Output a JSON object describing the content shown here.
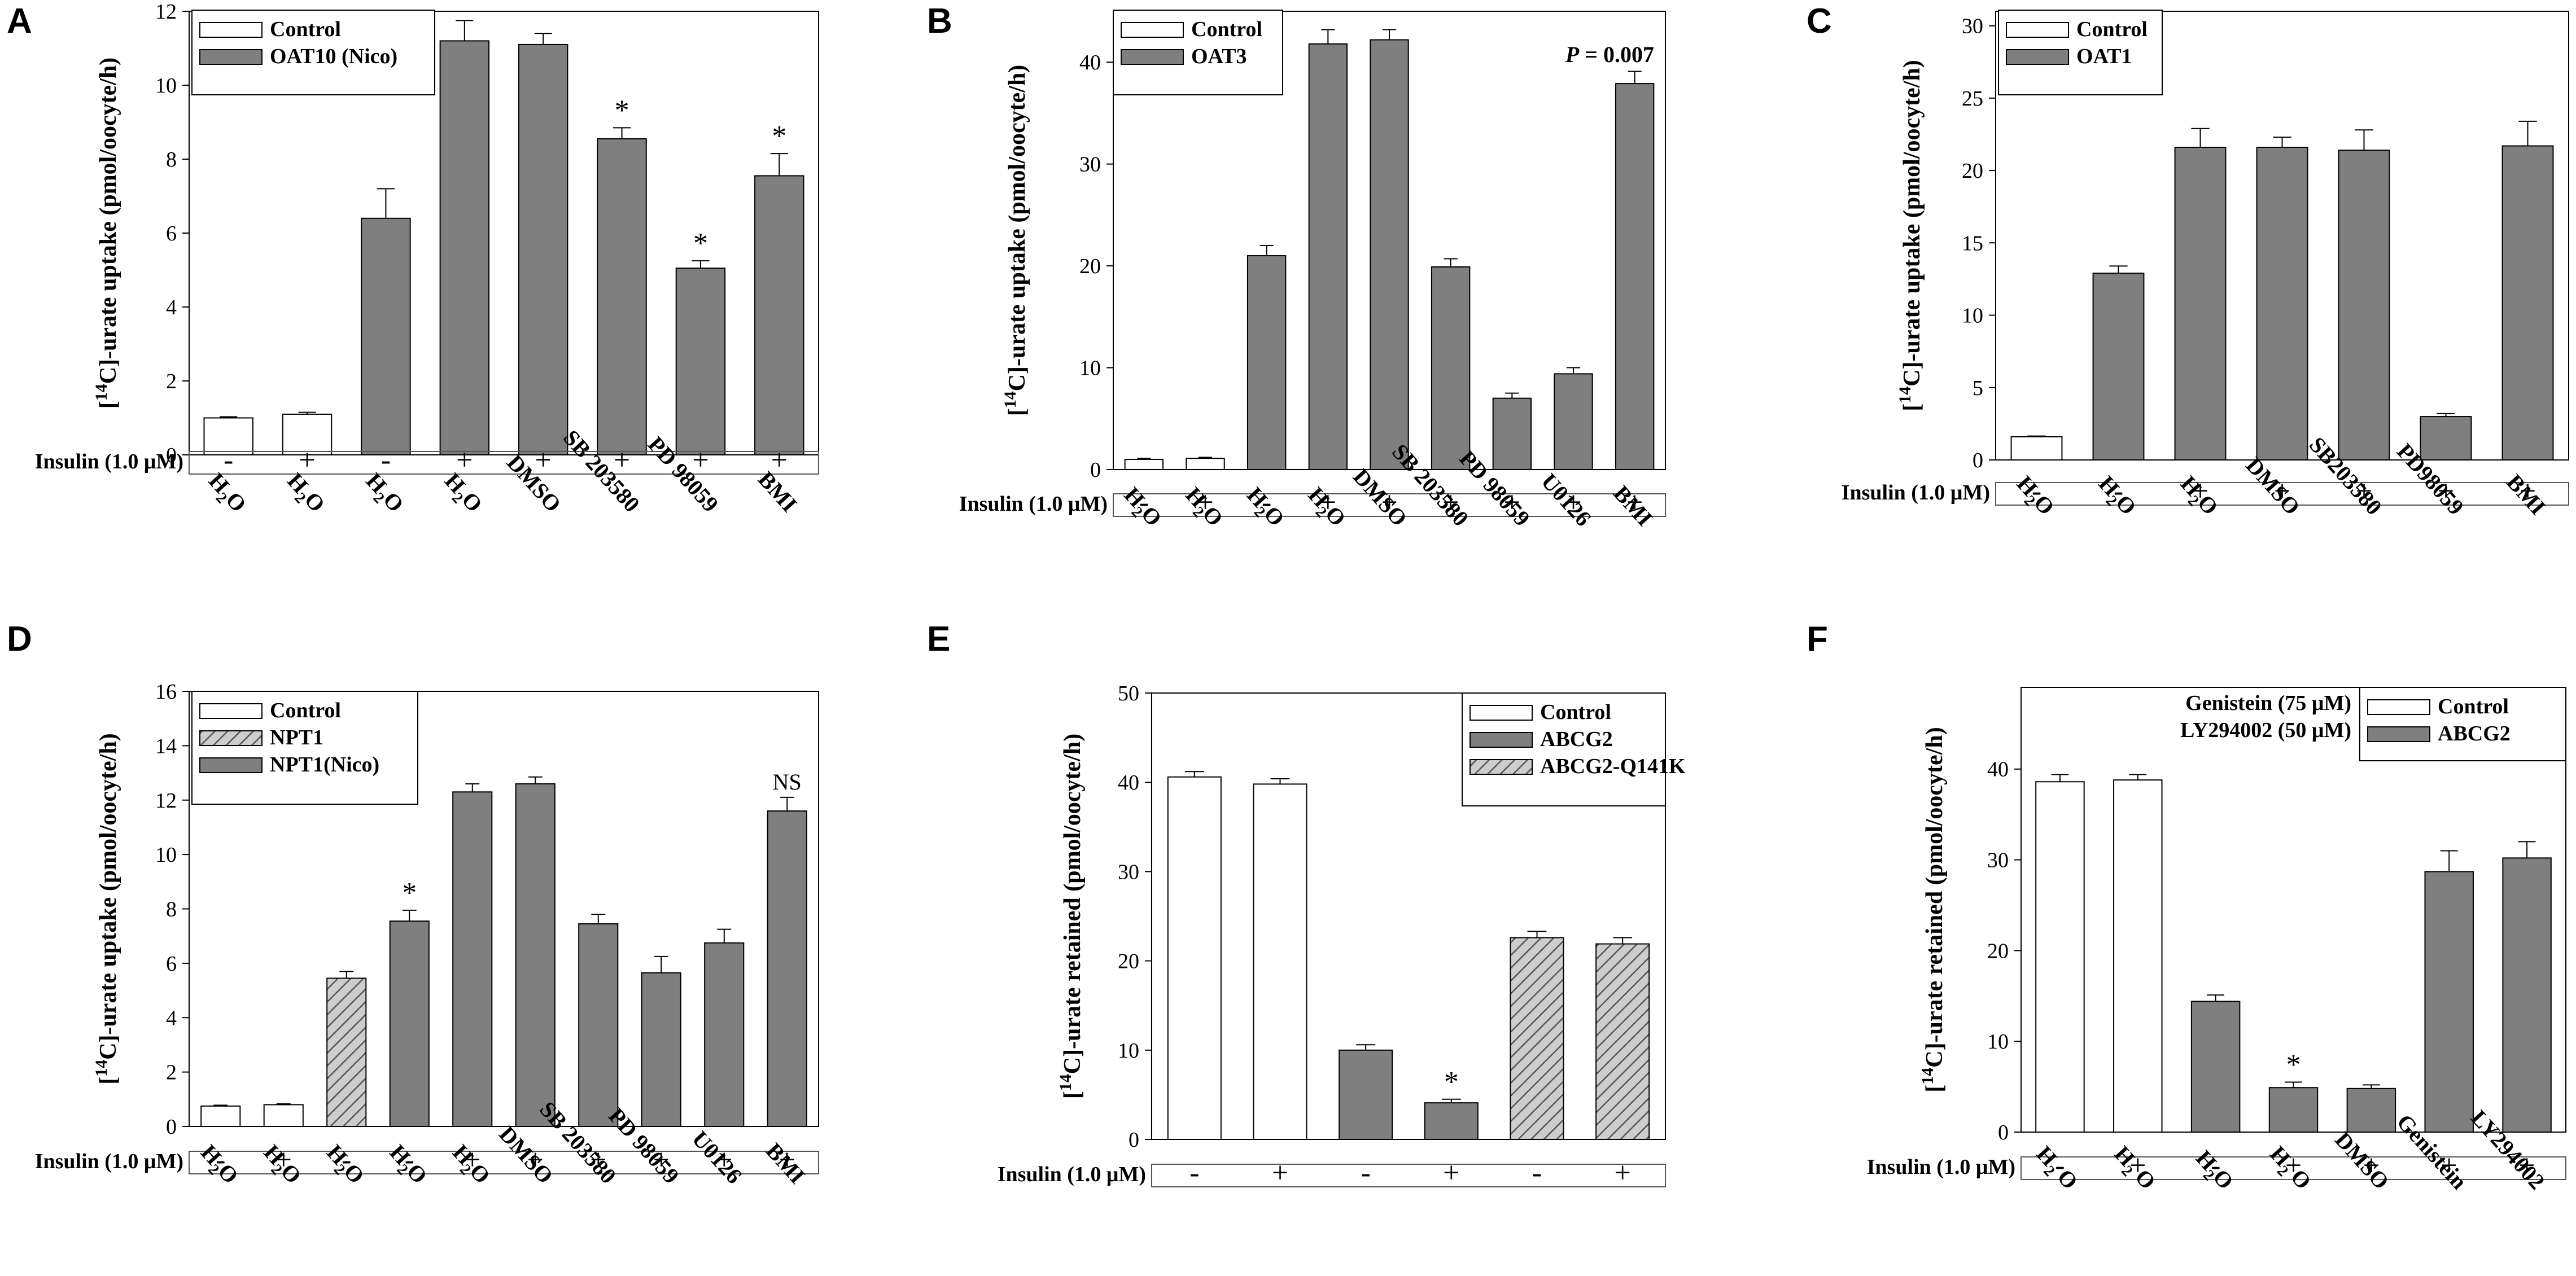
{
  "colors": {
    "control": "#ffffff",
    "treated": "#7f7f7f",
    "hatch_fill": "#cdcdcd",
    "hatch_line": "#555555",
    "stroke": "#000000"
  },
  "chart_data": [
    {
      "panel": "A",
      "type": "bar",
      "ylabel_prefix": "[",
      "ylabel_sup": "14",
      "ylabel_suffix": "C]-urate uptake (pmol/oocyte/h)",
      "ylim": [
        0,
        12
      ],
      "yticks": [
        0,
        2,
        4,
        6,
        8,
        10,
        12
      ],
      "insulin_label": "Insulin (1.0 μM)",
      "legend": [
        {
          "label": "Control",
          "style": "control"
        },
        {
          "label": "OAT10 (Nico)",
          "style": "treated"
        }
      ],
      "categories": [
        "H2O",
        "H2O",
        "H2O",
        "H2O",
        "DMSO",
        "SB 203580",
        "PD 98059",
        "BMI"
      ],
      "insulin": [
        "-",
        "+",
        "-",
        "+",
        "+",
        "+",
        "+",
        "+"
      ],
      "values": [
        1.0,
        1.1,
        6.4,
        11.2,
        11.1,
        8.55,
        5.05,
        7.55
      ],
      "errors": [
        0.03,
        0.05,
        0.8,
        0.55,
        0.3,
        0.3,
        0.2,
        0.6
      ],
      "styles": [
        "control",
        "control",
        "treated",
        "treated",
        "treated",
        "treated",
        "treated",
        "treated"
      ],
      "marks": [
        "",
        "",
        "",
        "",
        "",
        "*",
        "*",
        "*"
      ],
      "annotation": ""
    },
    {
      "panel": "B",
      "type": "bar",
      "ylabel_prefix": "[",
      "ylabel_sup": "14",
      "ylabel_suffix": "C]-urate uptake (pmol/oocyte/h)",
      "ylim": [
        0,
        45
      ],
      "yticks": [
        0,
        10,
        20,
        30,
        40
      ],
      "insulin_label": "Insulin (1.0 μM)",
      "legend": [
        {
          "label": "Control",
          "style": "control"
        },
        {
          "label": "OAT3",
          "style": "treated"
        }
      ],
      "categories": [
        "H2O",
        "H2O",
        "H2O",
        "H2O",
        "DMSO",
        "SB 203580",
        "PD 98059",
        "U0126",
        "BMI"
      ],
      "insulin": [
        "-",
        "+",
        "-",
        "+",
        "+",
        "+",
        "+",
        "+",
        "+"
      ],
      "values": [
        1.0,
        1.1,
        21.0,
        41.8,
        42.2,
        19.9,
        7.0,
        9.4,
        37.9
      ],
      "errors": [
        0.1,
        0.1,
        1.0,
        1.4,
        1.0,
        0.8,
        0.5,
        0.6,
        1.2
      ],
      "styles": [
        "control",
        "control",
        "treated",
        "treated",
        "treated",
        "treated",
        "treated",
        "treated",
        "treated"
      ],
      "marks": [
        "",
        "",
        "",
        "",
        "",
        "",
        "",
        "",
        ""
      ],
      "annotation": "P = 0.007"
    },
    {
      "panel": "C",
      "type": "bar",
      "ylabel_prefix": "[",
      "ylabel_sup": "14",
      "ylabel_suffix": "C]-urate uptake (pmol/oocyte/h)",
      "ylim": [
        0,
        31
      ],
      "yticks": [
        0,
        5,
        10,
        15,
        20,
        25,
        30
      ],
      "insulin_label": "Insulin (1.0 μM)",
      "legend": [
        {
          "label": "Control",
          "style": "control"
        },
        {
          "label": "OAT1",
          "style": "treated"
        }
      ],
      "categories": [
        "H2O",
        "H2O",
        "H2O",
        "DMSO",
        "SB203580",
        "PD98059",
        "BMI"
      ],
      "insulin": [
        "-",
        "-",
        "+",
        "+",
        "+",
        "+",
        "+"
      ],
      "values": [
        1.6,
        12.9,
        21.6,
        21.6,
        21.4,
        3.0,
        21.7
      ],
      "errors": [
        0.05,
        0.5,
        1.3,
        0.7,
        1.4,
        0.2,
        1.7
      ],
      "styles": [
        "control",
        "treated",
        "treated",
        "treated",
        "treated",
        "treated",
        "treated"
      ],
      "marks": [
        "",
        "",
        "",
        "",
        "",
        "",
        ""
      ],
      "annotation": ""
    },
    {
      "panel": "D",
      "type": "bar",
      "ylabel_prefix": "[",
      "ylabel_sup": "14",
      "ylabel_suffix": "C]-urate uptake (pmol/oocyte/h)",
      "ylim": [
        0,
        16
      ],
      "yticks": [
        0,
        2,
        4,
        6,
        8,
        10,
        12,
        14,
        16
      ],
      "insulin_label": "Insulin (1.0 μM)",
      "legend": [
        {
          "label": "Control",
          "style": "control"
        },
        {
          "label": "NPT1",
          "style": "hatch"
        },
        {
          "label": "NPT1(Nico)",
          "style": "treated"
        }
      ],
      "categories": [
        "H2O",
        "H2O",
        "H2O",
        "H2O",
        "H2O",
        "DMSO",
        "SB 203580",
        "PD 98059",
        "U0126",
        "BMI"
      ],
      "insulin": [
        "-",
        "+",
        "-",
        "-",
        "+",
        "+",
        "+",
        "+",
        "+",
        "+"
      ],
      "values": [
        0.75,
        0.8,
        5.45,
        7.55,
        12.3,
        12.6,
        7.45,
        5.65,
        6.75,
        11.6
      ],
      "errors": [
        0.03,
        0.03,
        0.25,
        0.4,
        0.3,
        0.25,
        0.35,
        0.6,
        0.5,
        0.5
      ],
      "styles": [
        "control",
        "control",
        "hatch",
        "treated",
        "treated",
        "treated",
        "treated",
        "treated",
        "treated",
        "treated"
      ],
      "marks": [
        "",
        "",
        "",
        "*",
        "",
        "",
        "",
        "",
        "",
        "NS"
      ],
      "annotation": ""
    },
    {
      "panel": "E",
      "type": "bar",
      "ylabel_prefix": "[",
      "ylabel_sup": "14",
      "ylabel_suffix": "C]-urate retained (pmol/oocyte/h)",
      "ylim": [
        0,
        50
      ],
      "yticks": [
        0,
        10,
        20,
        30,
        40,
        50
      ],
      "insulin_label": "Insulin (1.0 μM)",
      "legend": [
        {
          "label": "Control",
          "style": "control"
        },
        {
          "label": "ABCG2",
          "style": "treated"
        },
        {
          "label": "ABCG2-Q141K",
          "style": "hatch"
        }
      ],
      "categories": [
        "",
        "",
        "",
        "",
        "",
        ""
      ],
      "insulin": [
        "-",
        "+",
        "-",
        "+",
        "-",
        "+"
      ],
      "values": [
        40.6,
        39.8,
        10.0,
        4.1,
        22.6,
        21.9
      ],
      "errors": [
        0.6,
        0.6,
        0.6,
        0.4,
        0.7,
        0.7
      ],
      "styles": [
        "control",
        "control",
        "treated",
        "treated",
        "hatch",
        "hatch"
      ],
      "marks": [
        "",
        "",
        "",
        "*",
        "",
        ""
      ],
      "annotation": ""
    },
    {
      "panel": "F",
      "type": "bar",
      "ylabel_prefix": "[",
      "ylabel_sup": "14",
      "ylabel_suffix": "C]-urate retained (pmol/oocyte/h)",
      "ylim": [
        0,
        49
      ],
      "yticks": [
        0,
        10,
        20,
        30,
        40
      ],
      "insulin_label": "Insulin (1.0 μM)",
      "legend": [
        {
          "label": "Control",
          "style": "control"
        },
        {
          "label": "ABCG2",
          "style": "treated"
        }
      ],
      "legend_notes": [
        "Genistein (75 μM)",
        "LY294002 (50 μM)"
      ],
      "categories": [
        "H2 O",
        "H2 O",
        "H2O",
        "H2 O",
        "DMSO",
        "Genistein",
        "LY294002"
      ],
      "insulin": [
        "-",
        "+",
        "-",
        "+",
        "+",
        "+",
        "+"
      ],
      "values": [
        38.6,
        38.8,
        14.4,
        4.9,
        4.8,
        28.7,
        30.2
      ],
      "errors": [
        0.8,
        0.6,
        0.7,
        0.6,
        0.4,
        2.3,
        1.8
      ],
      "styles": [
        "control",
        "control",
        "treated",
        "treated",
        "treated",
        "treated",
        "treated"
      ],
      "marks": [
        "",
        "",
        "",
        "*",
        "",
        "",
        ""
      ],
      "annotation": ""
    }
  ]
}
